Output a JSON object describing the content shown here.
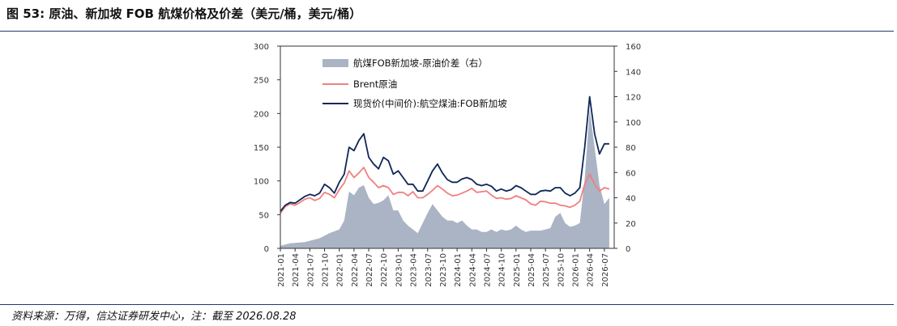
{
  "figure": {
    "title": "图 53:  原油、新加坡 FOB 航煤价格及价差（美元/桶，美元/桶）",
    "source_note": "资料来源：万得，信达证券研发中心，注：截至 2026.08.28"
  },
  "colors": {
    "spread_fill": "#aab4c5",
    "brent_line": "#f08080",
    "jet_line": "#0f2757",
    "rule": "#1f3a6b"
  },
  "chart_data": {
    "type": "line",
    "x_axis": {
      "type": "date",
      "range": [
        "2021-01",
        "2026-09"
      ],
      "tick_labels": [
        "2021-01",
        "2021-04",
        "2021-07",
        "2021-10",
        "2022-01",
        "2022-04",
        "2022-07",
        "2022-10",
        "2023-01",
        "2023-04",
        "2023-07",
        "2023-10",
        "2024-01",
        "2024-04",
        "2024-07",
        "2024-10",
        "2025-01",
        "2025-04",
        "2025-07",
        "2025-10",
        "2026-01",
        "2026-04",
        "2026-07"
      ]
    },
    "y_left": {
      "ylim": [
        0,
        300
      ],
      "ticks": [
        0,
        50,
        100,
        150,
        200,
        250,
        300
      ]
    },
    "y_right": {
      "ylim": [
        0,
        160
      ],
      "ticks": [
        0,
        20,
        40,
        60,
        80,
        100,
        120,
        140,
        160
      ]
    },
    "legend": {
      "placement": "top-left"
    },
    "series": [
      {
        "name": "航煤FOB新加坡-原油价差（右）",
        "style": "area",
        "axis": "right",
        "points": [
          [
            "2021-01",
            2
          ],
          [
            "2021-03",
            4
          ],
          [
            "2021-06",
            5
          ],
          [
            "2021-09",
            8
          ],
          [
            "2021-11",
            12
          ],
          [
            "2022-01",
            15
          ],
          [
            "2022-02",
            22
          ],
          [
            "2022-03",
            45
          ],
          [
            "2022-04",
            42
          ],
          [
            "2022-05",
            48
          ],
          [
            "2022-06",
            50
          ],
          [
            "2022-07",
            40
          ],
          [
            "2022-08",
            35
          ],
          [
            "2022-09",
            36
          ],
          [
            "2022-10",
            38
          ],
          [
            "2022-11",
            42
          ],
          [
            "2022-12",
            30
          ],
          [
            "2023-01",
            30
          ],
          [
            "2023-02",
            22
          ],
          [
            "2023-03",
            18
          ],
          [
            "2023-04",
            15
          ],
          [
            "2023-05",
            12
          ],
          [
            "2023-06",
            20
          ],
          [
            "2023-07",
            28
          ],
          [
            "2023-08",
            35
          ],
          [
            "2023-09",
            30
          ],
          [
            "2023-10",
            25
          ],
          [
            "2023-11",
            22
          ],
          [
            "2023-12",
            22
          ],
          [
            "2024-01",
            20
          ],
          [
            "2024-02",
            22
          ],
          [
            "2024-03",
            18
          ],
          [
            "2024-04",
            15
          ],
          [
            "2024-05",
            15
          ],
          [
            "2024-06",
            13
          ],
          [
            "2024-07",
            13
          ],
          [
            "2024-08",
            15
          ],
          [
            "2024-09",
            13
          ],
          [
            "2024-10",
            15
          ],
          [
            "2024-11",
            14
          ],
          [
            "2024-12",
            15
          ],
          [
            "2025-01",
            18
          ],
          [
            "2025-02",
            15
          ],
          [
            "2025-03",
            13
          ],
          [
            "2025-04",
            14
          ],
          [
            "2025-05",
            14
          ],
          [
            "2025-06",
            14
          ],
          [
            "2025-07",
            15
          ],
          [
            "2025-08",
            16
          ],
          [
            "2025-09",
            25
          ],
          [
            "2025-10",
            28
          ],
          [
            "2025-11",
            20
          ],
          [
            "2025-12",
            17
          ],
          [
            "2026-01",
            18
          ],
          [
            "2026-02",
            20
          ],
          [
            "2026-03",
            55
          ],
          [
            "2026-04",
            110
          ],
          [
            "2026-05",
            80
          ],
          [
            "2026-06",
            50
          ],
          [
            "2026-07",
            35
          ],
          [
            "2026-08",
            40
          ]
        ]
      },
      {
        "name": "Brent原油",
        "style": "line",
        "axis": "left",
        "points": [
          [
            "2021-01",
            52
          ],
          [
            "2021-02",
            62
          ],
          [
            "2021-03",
            66
          ],
          [
            "2021-04",
            64
          ],
          [
            "2021-05",
            68
          ],
          [
            "2021-06",
            73
          ],
          [
            "2021-07",
            75
          ],
          [
            "2021-08",
            71
          ],
          [
            "2021-09",
            74
          ],
          [
            "2021-10",
            83
          ],
          [
            "2021-11",
            80
          ],
          [
            "2021-12",
            75
          ],
          [
            "2022-01",
            87
          ],
          [
            "2022-02",
            97
          ],
          [
            "2022-03",
            115
          ],
          [
            "2022-04",
            105
          ],
          [
            "2022-05",
            112
          ],
          [
            "2022-06",
            120
          ],
          [
            "2022-07",
            105
          ],
          [
            "2022-08",
            98
          ],
          [
            "2022-09",
            90
          ],
          [
            "2022-10",
            93
          ],
          [
            "2022-11",
            90
          ],
          [
            "2022-12",
            80
          ],
          [
            "2023-01",
            83
          ],
          [
            "2023-02",
            83
          ],
          [
            "2023-03",
            78
          ],
          [
            "2023-04",
            84
          ],
          [
            "2023-05",
            75
          ],
          [
            "2023-06",
            75
          ],
          [
            "2023-07",
            80
          ],
          [
            "2023-08",
            86
          ],
          [
            "2023-09",
            93
          ],
          [
            "2023-10",
            88
          ],
          [
            "2023-11",
            82
          ],
          [
            "2023-12",
            78
          ],
          [
            "2024-01",
            79
          ],
          [
            "2024-02",
            82
          ],
          [
            "2024-03",
            85
          ],
          [
            "2024-04",
            89
          ],
          [
            "2024-05",
            83
          ],
          [
            "2024-06",
            84
          ],
          [
            "2024-07",
            85
          ],
          [
            "2024-08",
            79
          ],
          [
            "2024-09",
            74
          ],
          [
            "2024-10",
            75
          ],
          [
            "2024-11",
            73
          ],
          [
            "2024-12",
            74
          ],
          [
            "2025-01",
            78
          ],
          [
            "2025-02",
            75
          ],
          [
            "2025-03",
            72
          ],
          [
            "2025-04",
            66
          ],
          [
            "2025-05",
            64
          ],
          [
            "2025-06",
            70
          ],
          [
            "2025-07",
            69
          ],
          [
            "2025-08",
            67
          ],
          [
            "2025-09",
            67
          ],
          [
            "2025-10",
            64
          ],
          [
            "2025-11",
            63
          ],
          [
            "2025-12",
            61
          ],
          [
            "2026-01",
            64
          ],
          [
            "2026-02",
            70
          ],
          [
            "2026-03",
            95
          ],
          [
            "2026-04",
            110
          ],
          [
            "2026-05",
            95
          ],
          [
            "2026-06",
            85
          ],
          [
            "2026-07",
            90
          ],
          [
            "2026-08",
            88
          ]
        ]
      },
      {
        "name": "现货价(中间价):航空煤油:FOB新加坡",
        "style": "line",
        "axis": "left",
        "points": [
          [
            "2021-01",
            55
          ],
          [
            "2021-02",
            64
          ],
          [
            "2021-03",
            68
          ],
          [
            "2021-04",
            67
          ],
          [
            "2021-05",
            72
          ],
          [
            "2021-06",
            77
          ],
          [
            "2021-07",
            80
          ],
          [
            "2021-08",
            78
          ],
          [
            "2021-09",
            82
          ],
          [
            "2021-10",
            95
          ],
          [
            "2021-11",
            90
          ],
          [
            "2021-12",
            82
          ],
          [
            "2022-01",
            98
          ],
          [
            "2022-02",
            110
          ],
          [
            "2022-03",
            150
          ],
          [
            "2022-04",
            145
          ],
          [
            "2022-05",
            160
          ],
          [
            "2022-06",
            170
          ],
          [
            "2022-07",
            135
          ],
          [
            "2022-08",
            125
          ],
          [
            "2022-09",
            118
          ],
          [
            "2022-10",
            135
          ],
          [
            "2022-11",
            130
          ],
          [
            "2022-12",
            110
          ],
          [
            "2023-01",
            115
          ],
          [
            "2023-02",
            105
          ],
          [
            "2023-03",
            95
          ],
          [
            "2023-04",
            95
          ],
          [
            "2023-05",
            85
          ],
          [
            "2023-06",
            85
          ],
          [
            "2023-07",
            100
          ],
          [
            "2023-08",
            115
          ],
          [
            "2023-09",
            125
          ],
          [
            "2023-10",
            112
          ],
          [
            "2023-11",
            102
          ],
          [
            "2023-12",
            98
          ],
          [
            "2024-01",
            98
          ],
          [
            "2024-02",
            103
          ],
          [
            "2024-03",
            105
          ],
          [
            "2024-04",
            102
          ],
          [
            "2024-05",
            95
          ],
          [
            "2024-06",
            93
          ],
          [
            "2024-07",
            95
          ],
          [
            "2024-08",
            92
          ],
          [
            "2024-09",
            85
          ],
          [
            "2024-10",
            88
          ],
          [
            "2024-11",
            85
          ],
          [
            "2024-12",
            87
          ],
          [
            "2025-01",
            93
          ],
          [
            "2025-02",
            90
          ],
          [
            "2025-03",
            85
          ],
          [
            "2025-04",
            80
          ],
          [
            "2025-05",
            80
          ],
          [
            "2025-06",
            85
          ],
          [
            "2025-07",
            86
          ],
          [
            "2025-08",
            85
          ],
          [
            "2025-09",
            90
          ],
          [
            "2025-10",
            90
          ],
          [
            "2025-11",
            82
          ],
          [
            "2025-12",
            78
          ],
          [
            "2026-01",
            82
          ],
          [
            "2026-02",
            90
          ],
          [
            "2026-03",
            150
          ],
          [
            "2026-04",
            225
          ],
          [
            "2026-05",
            170
          ],
          [
            "2026-06",
            140
          ],
          [
            "2026-07",
            155
          ],
          [
            "2026-08",
            155
          ]
        ]
      }
    ]
  }
}
